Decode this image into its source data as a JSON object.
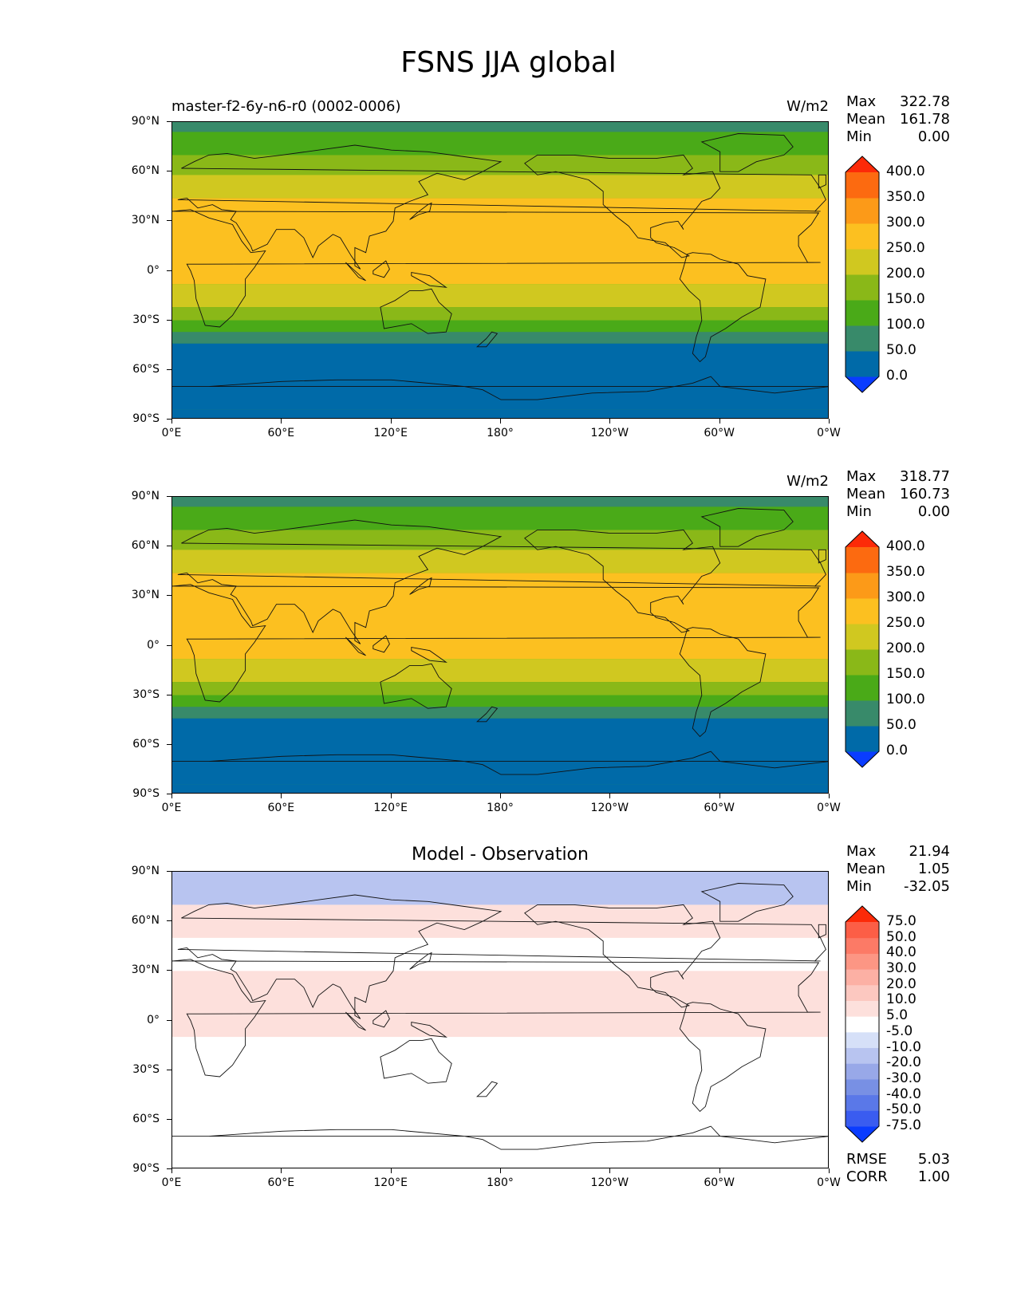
{
  "title": "FSNS JJA global",
  "panels": [
    {
      "title": "master-f2-6y-n6-r0 (0002-0006)",
      "units": "W/m2",
      "stats": [
        {
          "label": "Max",
          "value": "322.78"
        },
        {
          "label": "Mean",
          "value": "161.78"
        },
        {
          "label": "Min",
          "value": "0.00"
        }
      ]
    },
    {
      "title": "",
      "units": "W/m2",
      "stats": [
        {
          "label": "Max",
          "value": "318.77"
        },
        {
          "label": "Mean",
          "value": "160.73"
        },
        {
          "label": "Min",
          "value": "0.00"
        }
      ]
    },
    {
      "title": "Model - Observation",
      "units": "",
      "stats": [
        {
          "label": "Max",
          "value": "21.94"
        },
        {
          "label": "Mean",
          "value": "1.05"
        },
        {
          "label": "Min",
          "value": "-32.05"
        }
      ],
      "bottom_stats": [
        {
          "label": "RMSE",
          "value": "5.03"
        },
        {
          "label": "CORR",
          "value": "1.00"
        }
      ]
    }
  ],
  "axes": {
    "lat_ticks": [
      "90°N",
      "60°N",
      "30°N",
      "0°",
      "30°S",
      "60°S",
      "90°S"
    ],
    "lon_ticks": [
      "0°E",
      "60°E",
      "120°E",
      "180°",
      "120°W",
      "60°W",
      "0°W"
    ]
  },
  "colorbars": {
    "field": {
      "colors": [
        "#0a3cff",
        "#006aa8",
        "#388a6a",
        "#4aaa18",
        "#8ab818",
        "#d0c820",
        "#fcc020",
        "#fc9a18",
        "#fc6a10",
        "#fc2a08"
      ],
      "labels": [
        "0.0",
        "50.0",
        "100.0",
        "150.0",
        "200.0",
        "250.0",
        "300.0",
        "350.0",
        "400.0"
      ]
    },
    "diff": {
      "colors": [
        "#0a3cff",
        "#3a5cf0",
        "#5a78e8",
        "#7890e4",
        "#98a8e8",
        "#b8c4f0",
        "#d6e0f8",
        "#ffffff",
        "#fde0dc",
        "#fcc8c0",
        "#fcb0a4",
        "#fc9684",
        "#fc7a66",
        "#fc5e46",
        "#fc2a08"
      ],
      "labels": [
        "-75.0",
        "-50.0",
        "-40.0",
        "-30.0",
        "-20.0",
        "-10.0",
        "-5.0",
        "5.0",
        "10.0",
        "20.0",
        "30.0",
        "40.0",
        "50.0",
        "75.0"
      ]
    }
  },
  "chart_data": [
    {
      "type": "heatmap",
      "title": "master-f2-6y-n6-r0 (0002-0006)",
      "units": "W/m2",
      "xlim": [
        0,
        360
      ],
      "ylim": [
        -90,
        90
      ],
      "zonal_band_values": [
        {
          "lat_range": [
            84,
            90
          ],
          "value": 75
        },
        {
          "lat_range": [
            70,
            84
          ],
          "value": 125
        },
        {
          "lat_range": [
            58,
            70
          ],
          "value": 175
        },
        {
          "lat_range": [
            44,
            58
          ],
          "value": 225
        },
        {
          "lat_range": [
            -8,
            44
          ],
          "value": 275
        },
        {
          "lat_range": [
            -22,
            -8
          ],
          "value": 225
        },
        {
          "lat_range": [
            -30,
            -22
          ],
          "value": 175
        },
        {
          "lat_range": [
            -37,
            -30
          ],
          "value": 125
        },
        {
          "lat_range": [
            -44,
            -37
          ],
          "value": 75
        },
        {
          "lat_range": [
            -84,
            -44
          ],
          "value": 25
        },
        {
          "lat_range": [
            -90,
            -84
          ],
          "value": 0
        }
      ]
    },
    {
      "type": "heatmap",
      "title": "",
      "units": "W/m2",
      "xlim": [
        0,
        360
      ],
      "ylim": [
        -90,
        90
      ],
      "zonal_band_values": [
        {
          "lat_range": [
            84,
            90
          ],
          "value": 75
        },
        {
          "lat_range": [
            70,
            84
          ],
          "value": 125
        },
        {
          "lat_range": [
            58,
            70
          ],
          "value": 175
        },
        {
          "lat_range": [
            44,
            58
          ],
          "value": 225
        },
        {
          "lat_range": [
            -8,
            44
          ],
          "value": 275
        },
        {
          "lat_range": [
            -22,
            -8
          ],
          "value": 225
        },
        {
          "lat_range": [
            -30,
            -22
          ],
          "value": 175
        },
        {
          "lat_range": [
            -37,
            -30
          ],
          "value": 125
        },
        {
          "lat_range": [
            -44,
            -37
          ],
          "value": 75
        },
        {
          "lat_range": [
            -84,
            -44
          ],
          "value": 25
        },
        {
          "lat_range": [
            -90,
            -84
          ],
          "value": 0
        }
      ]
    },
    {
      "type": "heatmap",
      "title": "Model - Observation",
      "xlim": [
        0,
        360
      ],
      "ylim": [
        -90,
        90
      ],
      "zonal_band_values": [
        {
          "lat_range": [
            70,
            90
          ],
          "value": -12
        },
        {
          "lat_range": [
            50,
            70
          ],
          "value": 7
        },
        {
          "lat_range": [
            -10,
            30
          ],
          "value": 7
        },
        {
          "lat_range": [
            -90,
            -10
          ],
          "value": 0
        }
      ]
    }
  ]
}
